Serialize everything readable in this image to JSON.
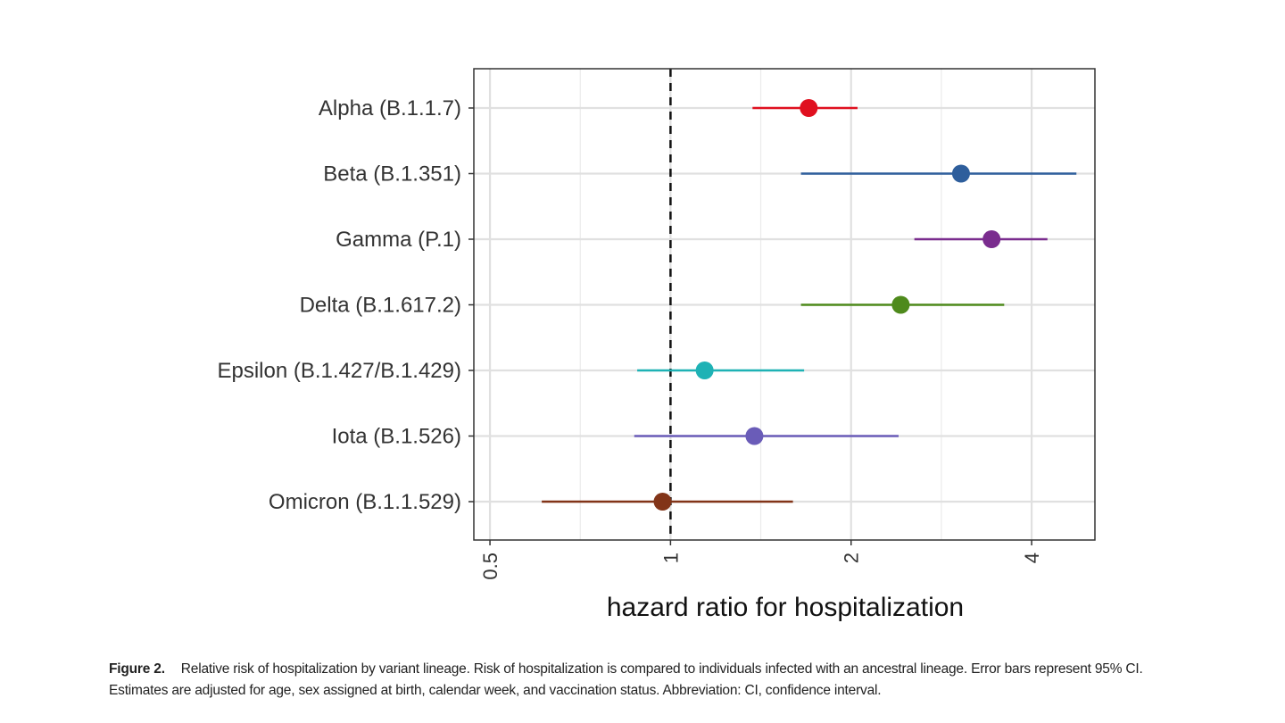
{
  "chart_data": {
    "type": "forest",
    "xlabel": "hazard ratio for hospitalization",
    "x_scale": "log2",
    "xlim": [
      0.47,
      5.1
    ],
    "x_ticks": [
      0.5,
      1,
      2,
      4
    ],
    "x_tick_labels": [
      "0.5",
      "1",
      "2",
      "4"
    ],
    "reference_line": 1,
    "reference_line_style": "dashed",
    "grid": true,
    "categories": [
      "Alpha (B.1.1.7)",
      "Beta (B.1.351)",
      "Gamma (P.1)",
      "Delta (B.1.617.2)",
      "Epsilon (B.1.427/B.1.429)",
      "Iota (B.1.526)",
      "Omicron (B.1.1.529)"
    ],
    "series": [
      {
        "estimate": 1.7,
        "lower": 1.37,
        "upper": 2.05,
        "color": "#e0101f"
      },
      {
        "estimate": 3.05,
        "lower": 1.65,
        "upper": 4.75,
        "color": "#2e5e9c"
      },
      {
        "estimate": 3.43,
        "lower": 2.55,
        "upper": 4.25,
        "color": "#7a2c8e"
      },
      {
        "estimate": 2.42,
        "lower": 1.65,
        "upper": 3.6,
        "color": "#4e8a1c"
      },
      {
        "estimate": 1.14,
        "lower": 0.88,
        "upper": 1.67,
        "color": "#1eb2b5"
      },
      {
        "estimate": 1.38,
        "lower": 0.87,
        "upper": 2.4,
        "color": "#6a5cb8"
      },
      {
        "estimate": 0.97,
        "lower": 0.61,
        "upper": 1.6,
        "color": "#823418"
      }
    ]
  },
  "caption": {
    "label": "Figure 2.",
    "text": "Relative risk of hospitalization by variant lineage. Risk of hospitalization is compared to individuals infected with an ancestral lineage. Error bars represent 95% CI. Estimates are adjusted for age, sex assigned at birth, calendar week, and vaccination status. Abbreviation: CI, confidence interval."
  }
}
